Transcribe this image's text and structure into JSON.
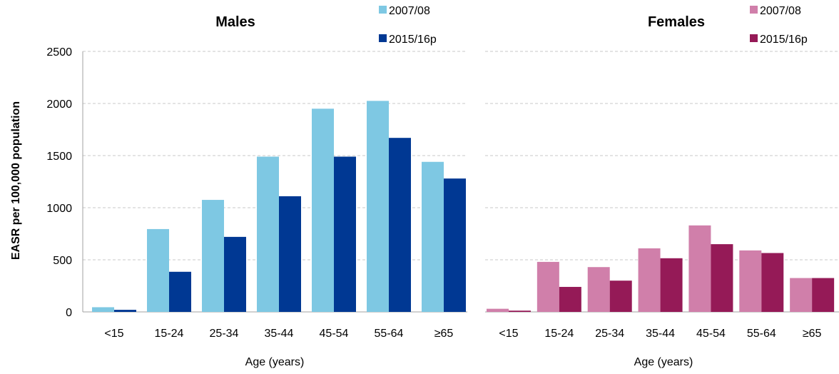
{
  "chart_data": [
    {
      "type": "bar",
      "title": "Males",
      "ylabel": "EASR per 100,000 population",
      "xlabel": "Age (years)",
      "ylim": [
        0,
        2500
      ],
      "yticks": [
        "0",
        "500",
        "1000",
        "1500",
        "2000",
        "2500"
      ],
      "grid": true,
      "legend_position": "top-right",
      "categories": [
        "<15",
        "15-24",
        "25-34",
        "35-44",
        "45-54",
        "55-64",
        "≥65"
      ],
      "series": [
        {
          "name": "2007/08",
          "color": "#7ec8e3",
          "values": [
            45,
            795,
            1075,
            1490,
            1950,
            2025,
            1440
          ]
        },
        {
          "name": "2015/16p",
          "color": "#003893",
          "values": [
            20,
            385,
            720,
            1110,
            1490,
            1670,
            1280
          ]
        }
      ]
    },
    {
      "type": "bar",
      "title": "Females",
      "xlabel": "Age (years)",
      "ylim": [
        0,
        2500
      ],
      "grid": true,
      "legend_position": "top-right",
      "categories": [
        "<15",
        "15-24",
        "25-34",
        "35-44",
        "45-54",
        "55-64",
        "≥65"
      ],
      "series": [
        {
          "name": "2007/08",
          "color": "#d07faa",
          "values": [
            30,
            480,
            430,
            610,
            830,
            590,
            325
          ]
        },
        {
          "name": "2015/16p",
          "color": "#951a57",
          "values": [
            12,
            240,
            300,
            515,
            650,
            565,
            325
          ]
        }
      ]
    }
  ]
}
